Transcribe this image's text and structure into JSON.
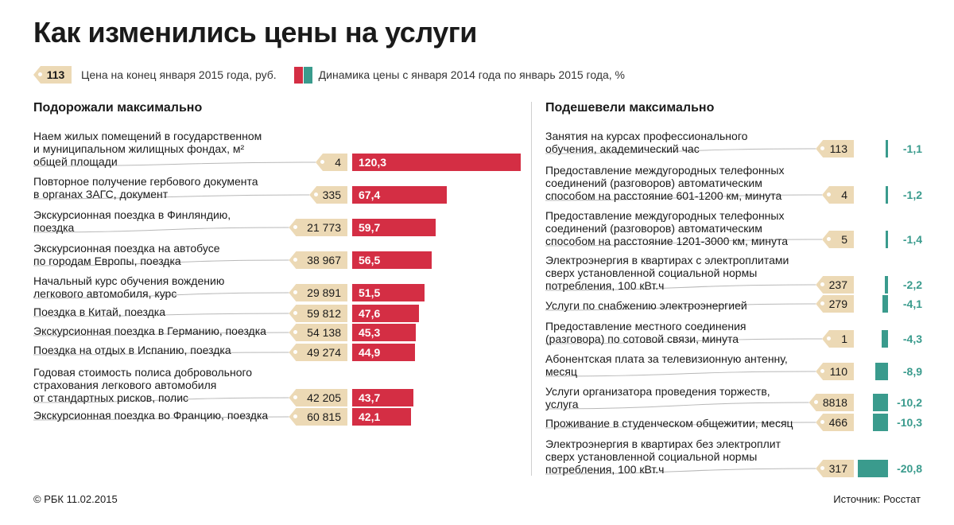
{
  "title": "Как изменились цены на услуги",
  "legend": {
    "tag_sample": "113",
    "price_label": "Цена на конец января 2015 года, руб.",
    "change_label": "Динамика цены с января 2014 года по январь 2015 года, %"
  },
  "colors": {
    "increase": "#d42e44",
    "decrease": "#3a9b8d",
    "tag": "#ecd9b5"
  },
  "left": {
    "heading": "Подорожали максимально"
  },
  "right": {
    "heading": "Подешевели максимально"
  },
  "chart_data": [
    {
      "type": "bar",
      "title": "Подорожали максимально",
      "series": [
        {
          "name": "Динамика цены с января 2014 года по январь 2015 года, %",
          "color": "#d42e44"
        }
      ],
      "rows": [
        {
          "label": "Наем жилых помещений в государственном\nи муниципальном жилищных фондах, м²\nобщей площади",
          "price": "4",
          "change": 120.3,
          "change_text": "120,3"
        },
        {
          "label": "Повторное получение гербового документа\nв органах ЗАГС, документ",
          "price": "335",
          "change": 67.4,
          "change_text": "67,4"
        },
        {
          "label": "Экскурсионная поездка в Финляндию,\nпоездка",
          "price": "21 773",
          "change": 59.7,
          "change_text": "59,7"
        },
        {
          "label": "Экскурсионная поездка на автобусе\nпо городам Европы, поездка",
          "price": "38 967",
          "change": 56.5,
          "change_text": "56,5"
        },
        {
          "label": "Начальный курс обучения вождению\nлегкового автомобиля, курс",
          "price": "29 891",
          "change": 51.5,
          "change_text": "51,5"
        },
        {
          "label": "Поездка в Китай, поездка",
          "price": "59 812",
          "change": 47.6,
          "change_text": "47,6"
        },
        {
          "label": "Экскурсионная поездка в Германию, поездка",
          "price": "54 138",
          "change": 45.3,
          "change_text": "45,3"
        },
        {
          "label": "Поездка на отдых в Испанию, поездка",
          "price": "49 274",
          "change": 44.9,
          "change_text": "44,9"
        },
        {
          "label": "Годовая стоимость полиса добровольного\nстрахования легкового автомобиля\nот стандартных рисков, полис",
          "price": "42 205",
          "change": 43.7,
          "change_text": "43,7"
        },
        {
          "label": "Экскурсионная поездка во Францию, поездка",
          "price": "60 815",
          "change": 42.1,
          "change_text": "42,1"
        }
      ]
    },
    {
      "type": "bar",
      "title": "Подешевели максимально",
      "series": [
        {
          "name": "Динамика цены с января 2014 года по январь 2015 года, %",
          "color": "#3a9b8d"
        }
      ],
      "rows": [
        {
          "label": "Занятия на курсах профессионального\nобучения, академический час",
          "price": "113",
          "change": -1.1,
          "change_text": "-1,1"
        },
        {
          "label": "Предоставление междугородных телефонных\nсоединений (разговоров) автоматическим\nспособом на расстояние 601-1200 км, минута",
          "price": "4",
          "change": -1.2,
          "change_text": "-1,2"
        },
        {
          "label": "Предоставление междугородных телефонных\nсоединений (разговоров) автоматическим\nспособом на расстояние 1201-3000 км, минута",
          "price": "5",
          "change": -1.4,
          "change_text": "-1,4"
        },
        {
          "label": "Электроэнергия в квартирах с электроплитами\nсверх установленной социальной нормы\nпотребления, 100 кВт.ч",
          "price": "237",
          "change": -2.2,
          "change_text": "-2,2"
        },
        {
          "label": "Услуги по снабжению электроэнергией",
          "price": "279",
          "change": -4.1,
          "change_text": "-4,1"
        },
        {
          "label": "Предоставление местного соединения\n(разговора) по сотовой связи, минута",
          "price": "1",
          "change": -4.3,
          "change_text": "-4,3"
        },
        {
          "label": "Абонентская плата за телевизионную антенну,\nмесяц",
          "price": "110",
          "change": -8.9,
          "change_text": "-8,9"
        },
        {
          "label": "Услуги организатора проведения торжеств,\nуслуга",
          "price": "8818",
          "change": -10.2,
          "change_text": "-10,2"
        },
        {
          "label": "Проживание в студенческом общежитии, месяц",
          "price": "466",
          "change": -10.3,
          "change_text": "-10,3"
        },
        {
          "label": "Электроэнергия в квартирах без электроплит\nсверх установленной социальной нормы\nпотребления, 100 кВт.ч",
          "price": "317",
          "change": -20.8,
          "change_text": "-20,8"
        }
      ]
    }
  ],
  "footer": {
    "copyright": "© РБК 11.02.2015",
    "source_prefix": "Источник: ",
    "source": "Росстат"
  }
}
